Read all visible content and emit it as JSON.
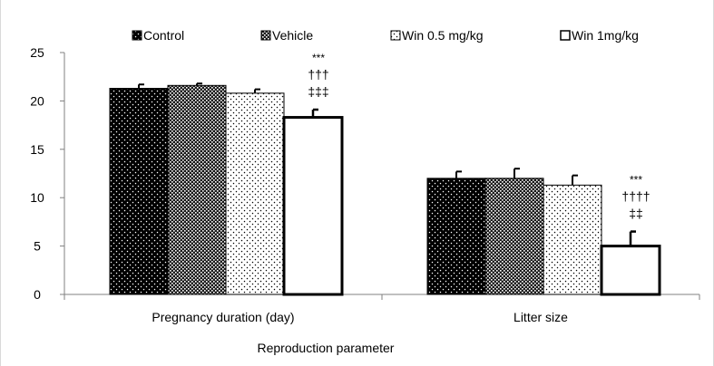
{
  "chart_data": {
    "type": "bar",
    "title": "",
    "xlabel": "Reproduction parameter",
    "ylabel": "",
    "ylim": [
      0,
      25
    ],
    "yticks": [
      "0",
      "5",
      "10",
      "15",
      "20",
      "25"
    ],
    "grid": false,
    "legend_position": "top",
    "categories": [
      "Pregnancy duration (day)",
      "Litter size"
    ],
    "series": [
      {
        "name": "Control",
        "pattern": "dark-dotted",
        "values": [
          21.3,
          12.0
        ],
        "errors": [
          0.4,
          0.7
        ]
      },
      {
        "name": "Vehicle",
        "pattern": "dark-checkered",
        "values": [
          21.6,
          12.0
        ],
        "errors": [
          0.2,
          1.0
        ]
      },
      {
        "name": "Win 0.5 mg/kg",
        "pattern": "light-dotted",
        "values": [
          20.8,
          11.3
        ],
        "errors": [
          0.4,
          1.0
        ]
      },
      {
        "name": "Win 1mg/kg",
        "pattern": "white",
        "values": [
          18.3,
          5.0
        ],
        "errors": [
          0.8,
          1.5
        ]
      }
    ],
    "annotations": [
      {
        "category": 0,
        "series": 3,
        "lines": [
          "***",
          "†††",
          "‡‡‡"
        ]
      },
      {
        "category": 1,
        "series": 3,
        "lines": [
          "***",
          "††††",
          "‡‡"
        ]
      }
    ],
    "colors": {
      "bar_edge": "#000000",
      "dark_fill": "#000000",
      "dot_light": "#ffffff",
      "dot_dark": "#000000",
      "light_fill": "#ffffff"
    }
  }
}
